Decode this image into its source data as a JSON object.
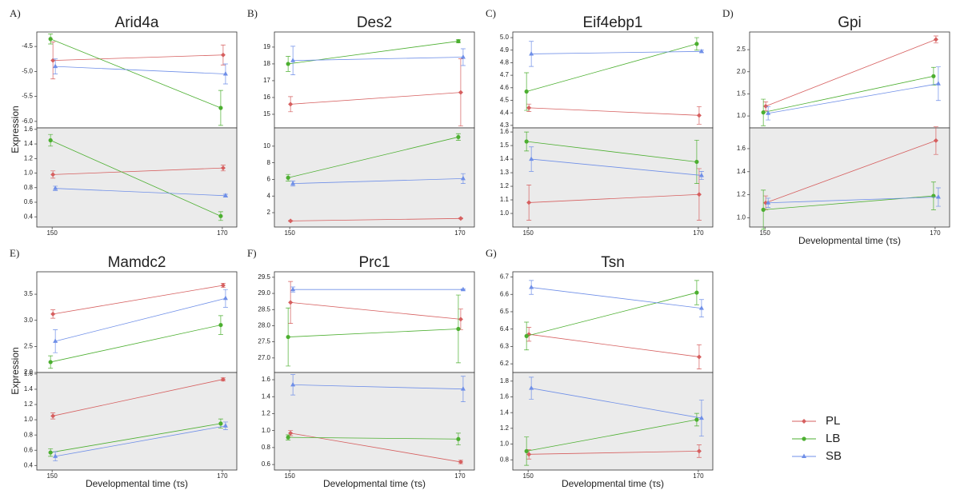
{
  "legend": [
    {
      "name": "PL",
      "color": "#d65f5f",
      "marker": "diamond"
    },
    {
      "name": "LB",
      "color": "#4caf30",
      "marker": "circle"
    },
    {
      "name": "SB",
      "color": "#6f8fe8",
      "marker": "triangle"
    }
  ],
  "chart_data": [
    {
      "type": "line",
      "panel_label": "A)",
      "title": "Arid4a",
      "ylabel": "Expression",
      "x": [
        150,
        170
      ],
      "xlim": [
        148.2,
        171.7
      ],
      "xticks": [
        150,
        170
      ],
      "subplots": [
        {
          "ylim": [
            -6.13,
            -4.21
          ],
          "yticks": [
            -4.5,
            {
              "value": -5,
              "label": "-5.0"
            },
            -5.5,
            {
              "value": -6,
              "label": "-6.0"
            }
          ],
          "series": [
            {
              "values": [
                -4.78,
                -4.67
              ],
              "errors": [
                0.37,
                0.2
              ]
            },
            {
              "values": [
                -4.35,
                -5.73
              ],
              "errors": [
                0.1,
                0.35
              ]
            },
            {
              "values": [
                -4.9,
                -5.05
              ],
              "errors": [
                0.15,
                0.2
              ]
            }
          ]
        },
        {
          "ylim": [
            0.26,
            1.62
          ],
          "yticks": [
            0.4,
            0.6,
            0.8,
            {
              "value": 1,
              "label": "1.0"
            },
            1.2,
            1.4,
            1.6
          ],
          "series": [
            {
              "values": [
                0.98,
                1.07
              ],
              "errors": [
                0.05,
                0.04
              ]
            },
            {
              "values": [
                1.45,
                0.41
              ],
              "errors": [
                0.08,
                0.06
              ]
            },
            {
              "values": [
                0.79,
                0.69
              ],
              "errors": [
                0.03,
                0.02
              ]
            }
          ]
        }
      ]
    },
    {
      "type": "line",
      "panel_label": "B)",
      "title": "Des2",
      "x": [
        150,
        170
      ],
      "xlim": [
        148.2,
        171.7
      ],
      "xticks": [
        150,
        170
      ],
      "subplots": [
        {
          "ylim": [
            14.19,
            19.9
          ],
          "yticks": [
            15,
            16,
            17,
            18,
            19
          ],
          "series": [
            {
              "values": [
                15.6,
                16.3
              ],
              "errors": [
                0.45,
                2.0
              ]
            },
            {
              "values": [
                18.0,
                19.35
              ],
              "errors": [
                0.45,
                0.1
              ]
            },
            {
              "values": [
                18.2,
                18.4
              ],
              "errors": [
                0.85,
                0.5
              ]
            }
          ]
        },
        {
          "ylim": [
            0.27,
            12.2
          ],
          "yticks": [
            2,
            4,
            6,
            8,
            10
          ],
          "series": [
            {
              "values": [
                1.0,
                1.3
              ],
              "errors": [
                0.05,
                0.05
              ]
            },
            {
              "values": [
                6.2,
                11.1
              ],
              "errors": [
                0.4,
                0.4
              ]
            },
            {
              "values": [
                5.5,
                6.1
              ],
              "errors": [
                0.3,
                0.6
              ]
            }
          ]
        }
      ]
    },
    {
      "type": "line",
      "panel_label": "C)",
      "title": "Eif4ebp1",
      "x": [
        150,
        170
      ],
      "xlim": [
        148.2,
        171.7
      ],
      "xticks": [
        150,
        170
      ],
      "subplots": [
        {
          "ylim": [
            4.28,
            5.045
          ],
          "yticks": [
            4.3,
            4.4,
            4.5,
            4.6,
            4.7,
            4.8,
            4.9,
            {
              "value": 5,
              "label": "5.0"
            }
          ],
          "series": [
            {
              "values": [
                4.44,
                4.38
              ],
              "errors": [
                0.03,
                0.07
              ]
            },
            {
              "values": [
                4.57,
                4.95
              ],
              "errors": [
                0.15,
                0.05
              ]
            },
            {
              "values": [
                4.87,
                4.89
              ],
              "errors": [
                0.1,
                0.01
              ]
            }
          ]
        },
        {
          "ylim": [
            0.9,
            1.63
          ],
          "yticks": [
            {
              "value": 1,
              "label": "1.0"
            },
            1.1,
            1.2,
            1.3,
            1.4,
            1.5,
            1.6
          ],
          "series": [
            {
              "values": [
                1.08,
                1.14
              ],
              "errors": [
                0.13,
                0.19
              ]
            },
            {
              "values": [
                1.53,
                1.38
              ],
              "errors": [
                0.07,
                0.16
              ]
            },
            {
              "values": [
                1.4,
                1.28
              ],
              "errors": [
                0.09,
                0.03
              ]
            }
          ]
        }
      ]
    },
    {
      "type": "line",
      "panel_label": "D)",
      "title": "Gpi",
      "xlabel": "Developmental time (τs)",
      "x": [
        150,
        170
      ],
      "xlim": [
        148.2,
        171.7
      ],
      "xticks": [
        150,
        170
      ],
      "subplots": [
        {
          "ylim": [
            0.73,
            2.9
          ],
          "yticks": [
            {
              "value": 1,
              "label": "1.0"
            },
            1.5,
            {
              "value": 2,
              "label": "2.0"
            },
            2.5
          ],
          "series": [
            {
              "values": [
                1.22,
                2.73
              ],
              "errors": [
                0.1,
                0.08
              ]
            },
            {
              "values": [
                1.08,
                1.9
              ],
              "errors": [
                0.3,
                0.2
              ]
            },
            {
              "values": [
                1.06,
                1.73
              ],
              "errors": [
                0.15,
                0.38
              ]
            }
          ]
        },
        {
          "ylim": [
            0.92,
            1.78
          ],
          "yticks": [
            {
              "value": 1,
              "label": "1.0"
            },
            1.2,
            1.4,
            1.6
          ],
          "series": [
            {
              "values": [
                1.13,
                1.67
              ],
              "errors": [
                0.06,
                0.12
              ]
            },
            {
              "values": [
                1.07,
                1.19
              ],
              "errors": [
                0.17,
                0.12
              ]
            },
            {
              "values": [
                1.13,
                1.18
              ],
              "errors": [
                0.04,
                0.08
              ]
            }
          ]
        }
      ]
    },
    {
      "type": "line",
      "panel_label": "E)",
      "title": "Mamdc2",
      "ylabel": "Expression",
      "xlabel": "Developmental time (τs)",
      "x": [
        150,
        170
      ],
      "xlim": [
        148.2,
        171.7
      ],
      "xticks": [
        150,
        170
      ],
      "subplots": [
        {
          "ylim": [
            2.0,
            3.93
          ],
          "yticks": [
            {
              "value": 2,
              "label": "2.0"
            },
            2.5,
            {
              "value": 3,
              "label": "3.0"
            },
            3.5
          ],
          "series": [
            {
              "values": [
                3.12,
                3.67
              ],
              "errors": [
                0.08,
                0.04
              ]
            },
            {
              "values": [
                2.2,
                2.91
              ],
              "errors": [
                0.12,
                0.18
              ]
            },
            {
              "values": [
                2.6,
                3.42
              ],
              "errors": [
                0.22,
                0.17
              ]
            }
          ]
        },
        {
          "ylim": [
            0.34,
            1.62
          ],
          "yticks": [
            0.4,
            0.6,
            0.8,
            {
              "value": 1,
              "label": "1.0"
            },
            1.2,
            1.4,
            1.6
          ],
          "series": [
            {
              "values": [
                1.05,
                1.53
              ],
              "errors": [
                0.04,
                0.02
              ]
            },
            {
              "values": [
                0.57,
                0.95
              ],
              "errors": [
                0.05,
                0.06
              ]
            },
            {
              "values": [
                0.52,
                0.92
              ],
              "errors": [
                0.06,
                0.05
              ]
            }
          ]
        }
      ]
    },
    {
      "type": "line",
      "panel_label": "F)",
      "title": "Prc1",
      "xlabel": "Developmental time (τs)",
      "x": [
        150,
        170
      ],
      "xlim": [
        148.2,
        171.7
      ],
      "xticks": [
        150,
        170
      ],
      "subplots": [
        {
          "ylim": [
            26.55,
            29.67
          ],
          "yticks": [
            {
              "value": 27,
              "label": "27.0"
            },
            27.5,
            {
              "value": 28,
              "label": "28.0"
            },
            28.5,
            {
              "value": 29,
              "label": "29.0"
            },
            29.5
          ],
          "series": [
            {
              "values": [
                28.72,
                28.2
              ],
              "errors": [
                0.65,
                0.32
              ]
            },
            {
              "values": [
                27.65,
                27.9
              ],
              "errors": [
                0.9,
                1.05
              ]
            },
            {
              "values": [
                29.12,
                29.12
              ],
              "errors": [
                0.08,
                0.02
              ]
            }
          ]
        },
        {
          "ylim": [
            0.535,
            1.685
          ],
          "yticks": [
            0.6,
            0.8,
            {
              "value": 1,
              "label": "1.0"
            },
            1.2,
            1.4,
            1.6
          ],
          "series": [
            {
              "values": [
                0.97,
                0.63
              ],
              "errors": [
                0.03,
                0.02
              ]
            },
            {
              "values": [
                0.92,
                0.9
              ],
              "errors": [
                0.03,
                0.07
              ]
            },
            {
              "values": [
                1.54,
                1.49
              ],
              "errors": [
                0.12,
                0.15
              ]
            }
          ]
        }
      ]
    },
    {
      "type": "line",
      "panel_label": "G)",
      "title": "Tsn",
      "xlabel": "Developmental time (τs)",
      "x": [
        150,
        170
      ],
      "xlim": [
        148.2,
        171.7
      ],
      "xticks": [
        150,
        170
      ],
      "subplots": [
        {
          "ylim": [
            6.15,
            6.73
          ],
          "yticks": [
            6.2,
            6.3,
            6.4,
            6.5,
            6.6,
            6.7
          ],
          "series": [
            {
              "values": [
                6.37,
                6.24
              ],
              "errors": [
                0.04,
                0.07
              ]
            },
            {
              "values": [
                6.36,
                6.61
              ],
              "errors": [
                0.08,
                0.07
              ]
            },
            {
              "values": [
                6.64,
                6.52
              ],
              "errors": [
                0.04,
                0.05
              ]
            }
          ]
        },
        {
          "ylim": [
            0.67,
            1.91
          ],
          "yticks": [
            0.8,
            {
              "value": 1,
              "label": "1.0"
            },
            1.2,
            1.4,
            1.6,
            1.8
          ],
          "series": [
            {
              "values": [
                0.87,
                0.91
              ],
              "errors": [
                0.06,
                0.08
              ]
            },
            {
              "values": [
                0.91,
                1.31
              ],
              "errors": [
                0.18,
                0.08
              ]
            },
            {
              "values": [
                1.71,
                1.33
              ],
              "errors": [
                0.14,
                0.23
              ]
            }
          ]
        }
      ]
    }
  ]
}
